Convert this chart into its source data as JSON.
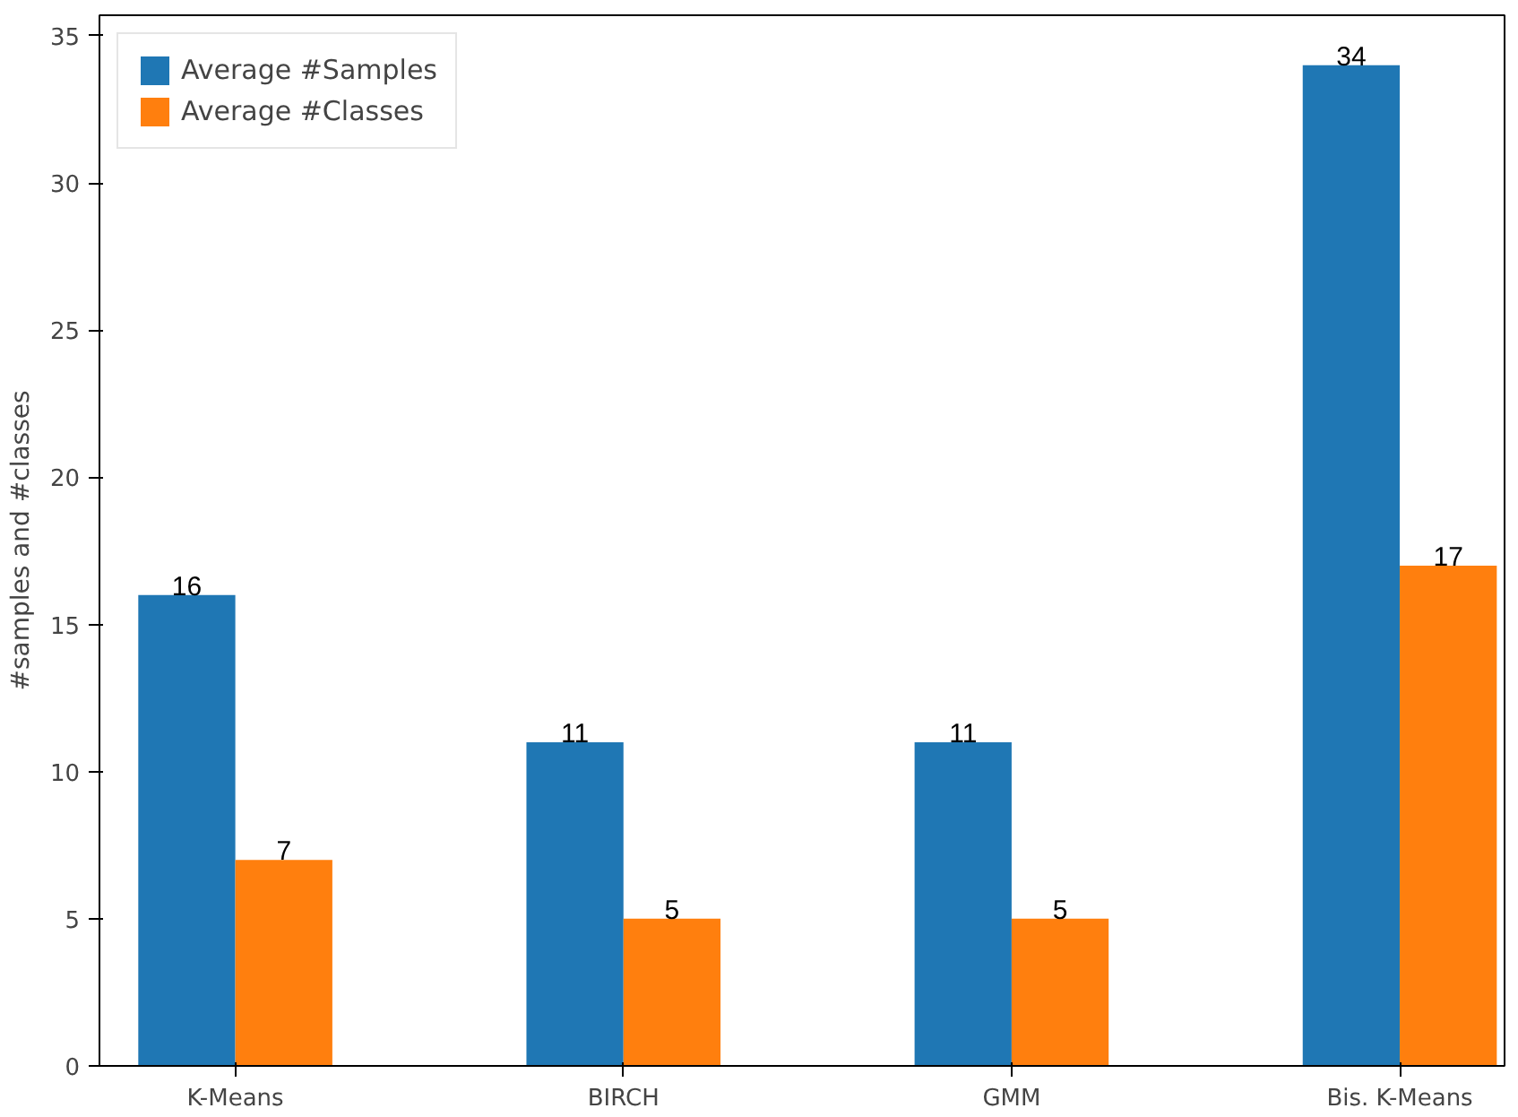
{
  "chart_data": {
    "type": "bar",
    "ylabel": "#samples and #classes",
    "categories": [
      "K-Means",
      "BIRCH",
      "GMM",
      "Bis. K-Means"
    ],
    "series": [
      {
        "name": "Average #Samples",
        "color": "#1f77b4",
        "values": [
          16,
          11,
          11,
          34
        ]
      },
      {
        "name": "Average #Classes",
        "color": "#ff7f0e",
        "values": [
          7,
          5,
          5,
          17
        ]
      }
    ],
    "ylim": [
      0,
      35.7
    ],
    "yticks": [
      0,
      5,
      10,
      15,
      20,
      25,
      30,
      35
    ],
    "data_labels": true,
    "legend": "top left",
    "grid": false
  }
}
